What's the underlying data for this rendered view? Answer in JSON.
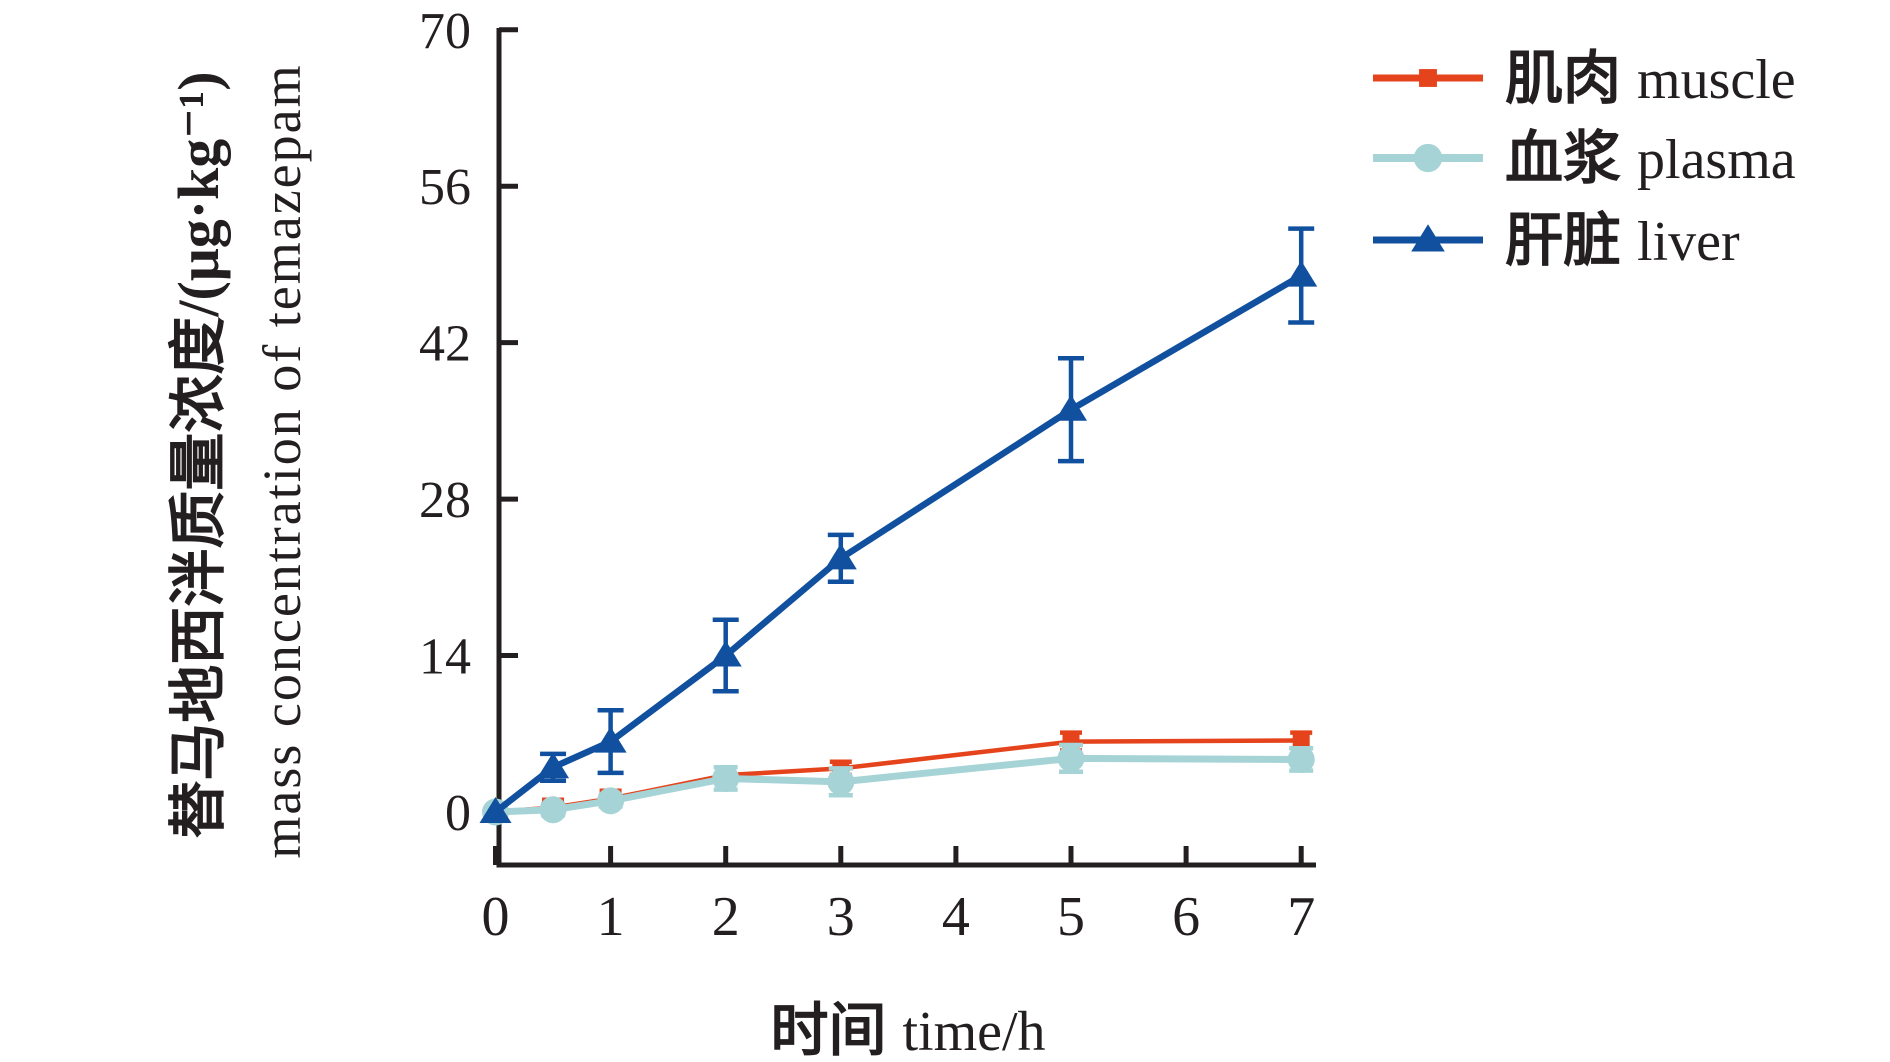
{
  "figure": {
    "background": "#ffffff",
    "axis_color": "#231f20",
    "text_color": "#231f20"
  },
  "chart_data": {
    "type": "line",
    "title": "",
    "xlabel": {
      "cjk": "时间",
      "en": "time/h"
    },
    "ylabel": {
      "line1": "替马地西泮质量浓度/(μg·kg⁻¹)",
      "line2": "mass concentration of temazepam"
    },
    "x": [
      0,
      0.5,
      1,
      2,
      3,
      5,
      7
    ],
    "xticks": [
      0,
      1,
      2,
      3,
      4,
      5,
      6,
      7
    ],
    "yticks": [
      0,
      14,
      28,
      42,
      56,
      70
    ],
    "xlim": [
      0,
      7.15
    ],
    "ylim": [
      0,
      70
    ],
    "grid": false,
    "legend_position": "top-right",
    "series": [
      {
        "id": "muscle",
        "name_cjk": "肌肉",
        "name_en": "muscle",
        "marker": "square",
        "color": "#e5431c",
        "values": [
          0,
          0.4,
          1.2,
          3.3,
          3.9,
          6.3,
          6.4
        ],
        "errors": [
          0,
          0.7,
          0.7,
          0.7,
          0.6,
          0.8,
          0.7
        ]
      },
      {
        "id": "plasma",
        "name_cjk": "血浆",
        "name_en": "plasma",
        "marker": "circle",
        "color": "#a6d4d6",
        "values": [
          0,
          0.2,
          1.0,
          3.0,
          2.7,
          4.8,
          4.7
        ],
        "errors": [
          0,
          0.5,
          0.5,
          1.0,
          1.2,
          1.2,
          1.0
        ]
      },
      {
        "id": "liver",
        "name_cjk": "肝脏",
        "name_en": "liver",
        "marker": "triangle",
        "color": "#10509f",
        "values": [
          0,
          4.0,
          6.3,
          14.0,
          22.7,
          36.0,
          48.0
        ],
        "errors": [
          0,
          1.2,
          2.8,
          3.2,
          2.1,
          4.6,
          4.2
        ]
      }
    ]
  }
}
